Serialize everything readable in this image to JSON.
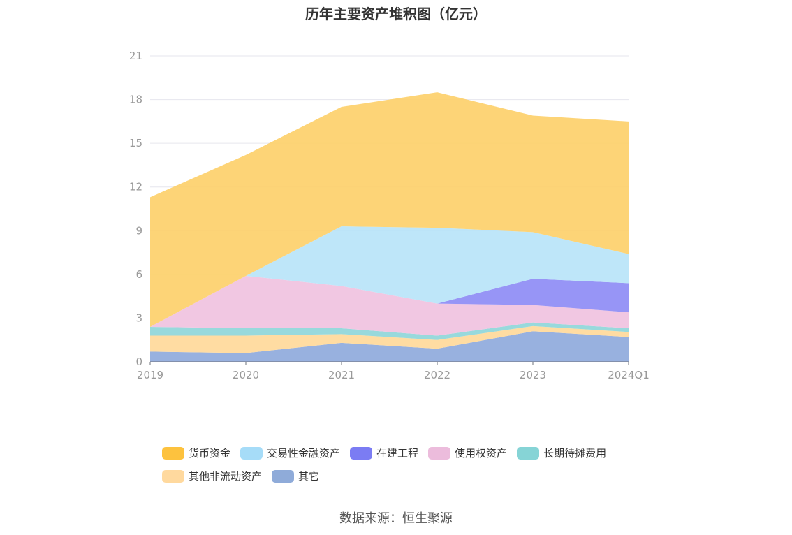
{
  "chart_data": {
    "type": "area",
    "title": "历年主要资产堆积图（亿元）",
    "categories": [
      "2019",
      "2020",
      "2021",
      "2022",
      "2023",
      "2024Q1"
    ],
    "ylim": [
      0,
      21
    ],
    "yticks": [
      "0",
      "3",
      "6",
      "9",
      "12",
      "15",
      "18",
      "21"
    ],
    "grid": true,
    "legend_position": "bottom",
    "stacked": true,
    "series": [
      {
        "name": "其它",
        "color": "#8faadc",
        "values": [
          0.7,
          0.6,
          1.3,
          0.9,
          2.1,
          1.7
        ]
      },
      {
        "name": "其他非流动资产",
        "color": "#ffd99a",
        "values": [
          1.1,
          1.2,
          0.6,
          0.6,
          0.35,
          0.35
        ]
      },
      {
        "name": "长期待摊费用",
        "color": "#8fd6d9",
        "values": [
          0.6,
          0.5,
          0.4,
          0.3,
          0.25,
          0.25
        ]
      },
      {
        "name": "使用权资产",
        "color": "#f0c2e0",
        "values": [
          0.0,
          3.6,
          2.9,
          2.2,
          1.2,
          1.1
        ]
      },
      {
        "name": "在建工程",
        "color": "#8e8cf5",
        "values": [
          0.0,
          0.0,
          0.0,
          0.0,
          1.8,
          2.0
        ]
      },
      {
        "name": "交易性金融资产",
        "color": "#b8e4f9",
        "values": [
          0.0,
          0.0,
          4.1,
          5.2,
          3.2,
          2.0
        ]
      },
      {
        "name": "货币资金",
        "color": "#fdd06b",
        "values": [
          8.9,
          8.3,
          8.2,
          9.3,
          8.0,
          9.1
        ]
      }
    ]
  },
  "legend": {
    "row1": [
      {
        "label": "货币资金",
        "color": "#fdc23e"
      },
      {
        "label": "交易性金融资产",
        "color": "#a6dcf8"
      },
      {
        "label": "在建工程",
        "color": "#7b7cf3"
      },
      {
        "label": "使用权资产",
        "color": "#ecbcdc"
      },
      {
        "label": "长期待摊费用",
        "color": "#86d4d6"
      }
    ],
    "row2": [
      {
        "label": "其他非流动资产",
        "color": "#ffd99e"
      },
      {
        "label": "其它",
        "color": "#8fabd9"
      }
    ]
  },
  "source": "数据来源：恒生聚源"
}
